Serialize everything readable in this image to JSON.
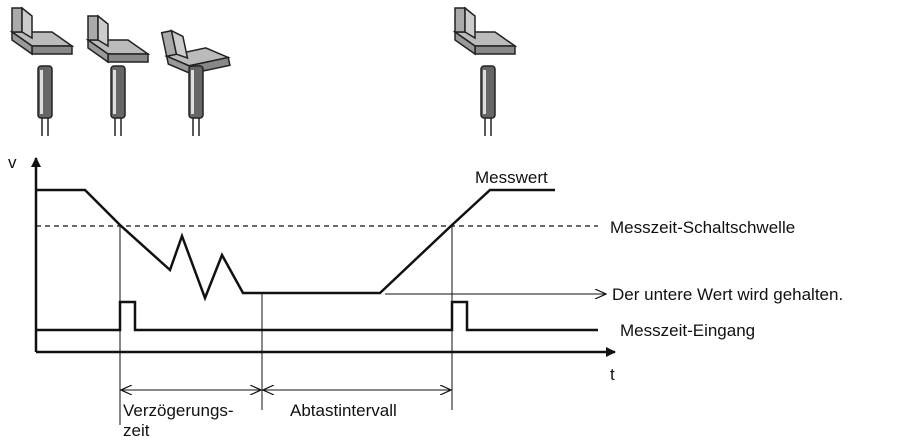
{
  "axes": {
    "y_label": "v",
    "x_label": "t"
  },
  "labels": {
    "measured_value": "Messwert",
    "threshold": "Messzeit-Schaltschwelle",
    "hold": "Der untere Wert wird gehalten.",
    "input": "Messzeit-Eingang",
    "delay_line1": "Verzögerungs-",
    "delay_line2": "zeit",
    "sampling": "Abtastintervall"
  }
}
